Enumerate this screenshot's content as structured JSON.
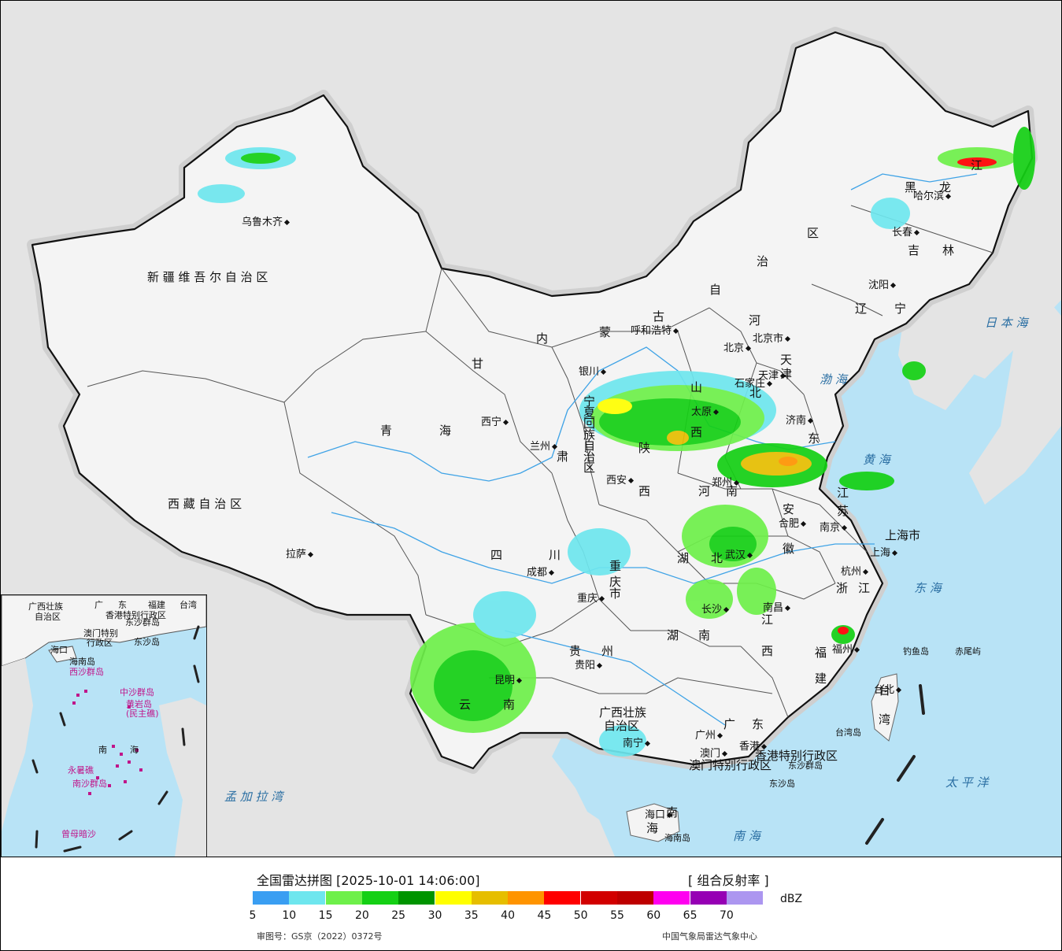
{
  "map_labels": {
    "provinces": [
      {
        "text": "新 疆 维 吾 尔 自 治 区"
      },
      {
        "text": "西 藏 自 治 区"
      },
      {
        "text": "青"
      },
      {
        "text": "海"
      },
      {
        "text": "甘"
      },
      {
        "text": "肃"
      },
      {
        "text": "内"
      },
      {
        "text": "蒙"
      },
      {
        "text": "古"
      },
      {
        "text": "自"
      },
      {
        "text": "治"
      },
      {
        "text": "区"
      },
      {
        "text": "黑"
      },
      {
        "text": "龙"
      },
      {
        "text": "江"
      },
      {
        "text": "吉"
      },
      {
        "text": "林"
      },
      {
        "text": "辽"
      },
      {
        "text": "宁"
      },
      {
        "text": "河"
      },
      {
        "text": "北"
      },
      {
        "text": "山"
      },
      {
        "text": "西"
      },
      {
        "text": "东"
      },
      {
        "text": "陕"
      },
      {
        "text": "西"
      },
      {
        "text": "河"
      },
      {
        "text": "南"
      },
      {
        "text": "江"
      },
      {
        "text": "苏"
      },
      {
        "text": "安"
      },
      {
        "text": "徽"
      },
      {
        "text": "四"
      },
      {
        "text": "川"
      },
      {
        "text": "重"
      },
      {
        "text": "庆"
      },
      {
        "text": "市"
      },
      {
        "text": "湖"
      },
      {
        "text": "北"
      },
      {
        "text": "湖"
      },
      {
        "text": "南"
      },
      {
        "text": "江"
      },
      {
        "text": "西"
      },
      {
        "text": "浙"
      },
      {
        "text": "江"
      },
      {
        "text": "福"
      },
      {
        "text": "建"
      },
      {
        "text": "贵"
      },
      {
        "text": "州"
      },
      {
        "text": "云"
      },
      {
        "text": "南"
      },
      {
        "text": "广西壮族"
      },
      {
        "text": "自治区"
      },
      {
        "text": "广"
      },
      {
        "text": "东"
      },
      {
        "text": "上海市"
      },
      {
        "text": "台"
      },
      {
        "text": "湾"
      },
      {
        "text": "海"
      },
      {
        "text": "南"
      },
      {
        "text": "香港特别行政区"
      },
      {
        "text": "澳门特别行政区"
      },
      {
        "text": "宁"
      },
      {
        "text": "夏"
      },
      {
        "text": "回"
      },
      {
        "text": "族"
      },
      {
        "text": "自"
      },
      {
        "text": "治"
      },
      {
        "text": "区"
      },
      {
        "text": "天"
      },
      {
        "text": "津"
      }
    ],
    "cities": [
      {
        "text": "乌鲁木齐"
      },
      {
        "text": "拉萨"
      },
      {
        "text": "西宁"
      },
      {
        "text": "兰州"
      },
      {
        "text": "银川"
      },
      {
        "text": "呼和浩特"
      },
      {
        "text": "北京"
      },
      {
        "text": "北京市"
      },
      {
        "text": "天津"
      },
      {
        "text": "石家庄"
      },
      {
        "text": "太原"
      },
      {
        "text": "济南"
      },
      {
        "text": "郑州"
      },
      {
        "text": "西安"
      },
      {
        "text": "哈尔滨"
      },
      {
        "text": "长春"
      },
      {
        "text": "沈阳"
      },
      {
        "text": "成都"
      },
      {
        "text": "重庆"
      },
      {
        "text": "武汉"
      },
      {
        "text": "合肥"
      },
      {
        "text": "南京"
      },
      {
        "text": "上海"
      },
      {
        "text": "杭州"
      },
      {
        "text": "长沙"
      },
      {
        "text": "南昌"
      },
      {
        "text": "福州"
      },
      {
        "text": "贵阳"
      },
      {
        "text": "昆明"
      },
      {
        "text": "南宁"
      },
      {
        "text": "广州"
      },
      {
        "text": "香港"
      },
      {
        "text": "澳门"
      },
      {
        "text": "海口"
      },
      {
        "text": "台北"
      }
    ],
    "seas": [
      {
        "text": "日 本 海"
      },
      {
        "text": "渤 海"
      },
      {
        "text": "黄 海"
      },
      {
        "text": "东 海"
      },
      {
        "text": "太 平 洋"
      },
      {
        "text": "南 海"
      },
      {
        "text": "孟 加 拉 湾"
      }
    ],
    "islands": [
      {
        "text": "钓鱼岛"
      },
      {
        "text": "赤尾屿"
      },
      {
        "text": "台湾岛"
      },
      {
        "text": "东沙群岛"
      },
      {
        "text": "东沙岛"
      },
      {
        "text": "海南岛"
      }
    ]
  },
  "inset": {
    "labels": [
      {
        "text": "广西壮族"
      },
      {
        "text": "自治区"
      },
      {
        "text": "广"
      },
      {
        "text": "东"
      },
      {
        "text": "福建"
      },
      {
        "text": "台湾"
      },
      {
        "text": "香港特别行政区"
      },
      {
        "text": "澳门特别"
      },
      {
        "text": "行政区"
      },
      {
        "text": "东沙群岛"
      },
      {
        "text": "东沙岛"
      },
      {
        "text": "海口"
      },
      {
        "text": "海南岛"
      },
      {
        "text": "西沙群岛"
      },
      {
        "text": "中沙群岛"
      },
      {
        "text": "黄岩岛"
      },
      {
        "text": "(民主礁)"
      },
      {
        "text": "南"
      },
      {
        "text": "海"
      },
      {
        "text": "永暑礁"
      },
      {
        "text": "南沙群岛"
      },
      {
        "text": "曾母暗沙"
      }
    ]
  },
  "legend": {
    "title": "全国雷达拼图 [2025-10-01 14:06:00]",
    "product": "[ 组合反射率 ]",
    "unit": "dBZ",
    "ticks": [
      "5",
      "10",
      "15",
      "20",
      "25",
      "30",
      "35",
      "40",
      "45",
      "50",
      "55",
      "60",
      "65",
      "70"
    ],
    "colors": [
      "#3a9ef2",
      "#6ee6ee",
      "#6ef04a",
      "#14d014",
      "#009400",
      "#ffff00",
      "#e6be00",
      "#ff9400",
      "#ff0000",
      "#d20000",
      "#be0000",
      "#ff00f0",
      "#9600b4",
      "#ac96f0"
    ],
    "approval": "审图号：GS京（2022）0372号",
    "agency": "中国气象局雷达气象中心"
  }
}
